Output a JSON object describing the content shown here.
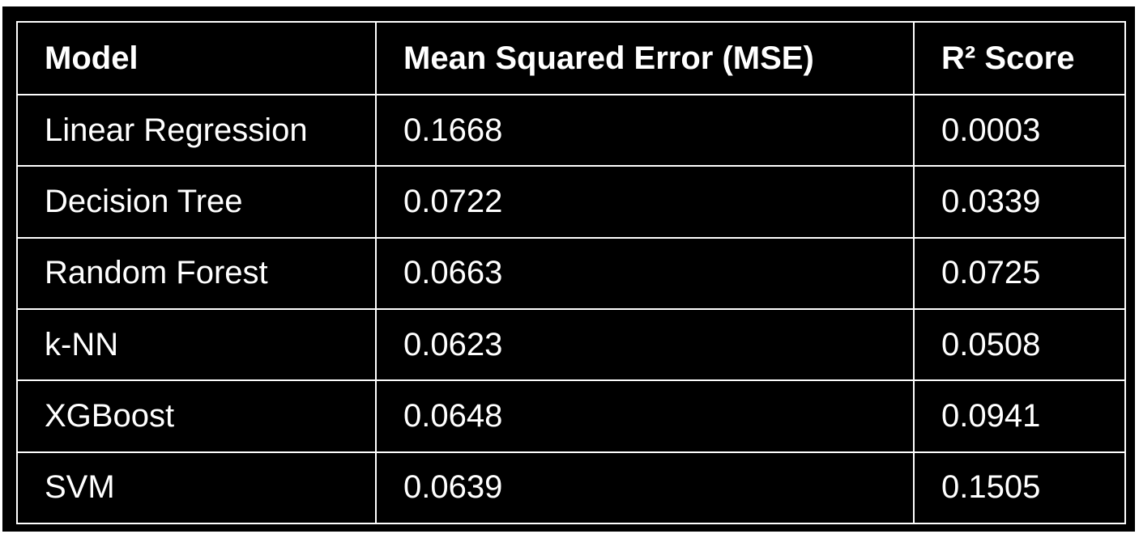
{
  "table": {
    "columns": [
      "Model",
      "Mean Squared Error (MSE)",
      "R² Score"
    ],
    "rows": [
      {
        "model": "Linear Regression",
        "mse": "0.1668",
        "r2": "0.0003"
      },
      {
        "model": "Decision Tree",
        "mse": "0.0722",
        "r2": "0.0339"
      },
      {
        "model": "Random Forest",
        "mse": "0.0663",
        "r2": "0.0725"
      },
      {
        "model": "k-NN",
        "mse": "0.0623",
        "r2": "0.0508"
      },
      {
        "model": "XGBoost",
        "mse": "0.0648",
        "r2": "0.0941"
      },
      {
        "model": "SVM",
        "mse": "0.0639",
        "r2": "0.1505"
      }
    ]
  },
  "colors": {
    "background": "#000000",
    "text": "#ffffff",
    "border": "#ffffff"
  }
}
